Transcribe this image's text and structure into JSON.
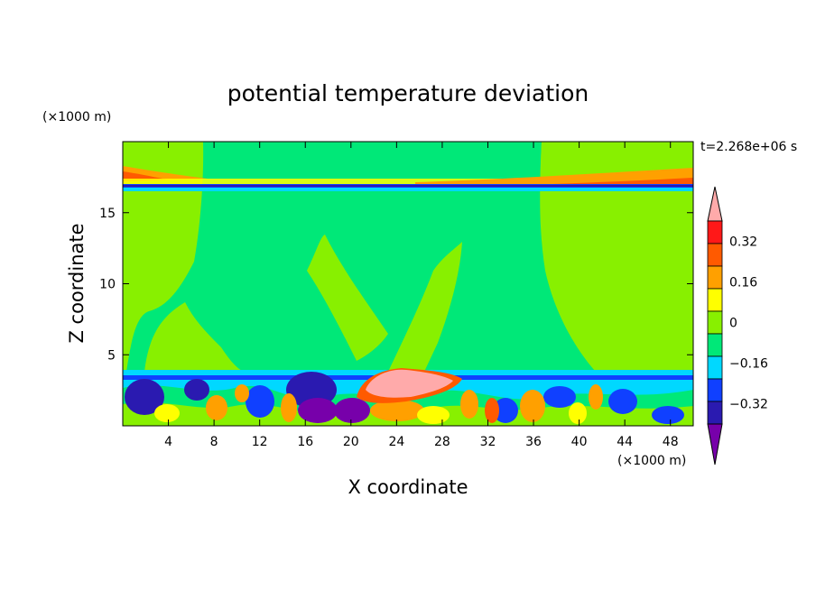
{
  "chart_data": {
    "type": "heatmap",
    "title": "potential temperature deviation",
    "xlabel": "X coordinate",
    "ylabel": "Z coordinate",
    "x_unit": "(×1000 m)",
    "y_unit": "(×1000 m)",
    "time_label": "t=2.268e+06 s",
    "xlim": [
      0,
      50
    ],
    "ylim": [
      0,
      20
    ],
    "x_ticks": [
      4,
      8,
      12,
      16,
      20,
      24,
      28,
      32,
      36,
      40,
      44,
      48
    ],
    "y_ticks": [
      5,
      10,
      15
    ],
    "colorbar": {
      "levels": [
        -0.4,
        -0.32,
        -0.24,
        -0.16,
        -0.08,
        0,
        0.08,
        0.16,
        0.24,
        0.32,
        0.4
      ],
      "tick_labels": [
        "0.32",
        "0.16",
        "0",
        "−0.16",
        "−0.32"
      ],
      "tick_values": [
        0.32,
        0.16,
        0,
        -0.16,
        -0.32
      ],
      "colors": [
        "#7700aa",
        "#2a1ab0",
        "#1040ff",
        "#00d8ff",
        "#00e878",
        "#88f000",
        "#ffff00",
        "#ffa000",
        "#ff5a00",
        "#ff1818",
        "#ffaaaa"
      ],
      "extend": "both"
    },
    "features": [
      {
        "kind": "background",
        "value": 0.02,
        "color": "#88f000"
      },
      {
        "kind": "region",
        "value": -0.04,
        "color": "#00e878",
        "description": "slightly negative interior"
      },
      {
        "kind": "band",
        "value": 0.3,
        "z": 17.5
      },
      {
        "kind": "band",
        "value": -0.3,
        "z": 16.8
      },
      {
        "kind": "blob",
        "value": 0.42,
        "x_range": [
          21,
          30
        ],
        "z_range": [
          2.5,
          4
        ]
      },
      {
        "kind": "boundary-layer",
        "z_range": [
          0,
          3.7
        ],
        "values": "mixed -0.4 to 0.3"
      }
    ]
  }
}
